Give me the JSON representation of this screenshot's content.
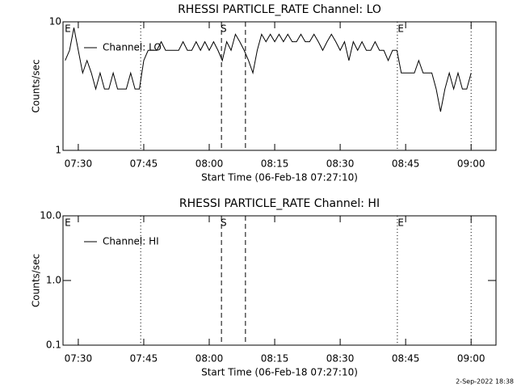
{
  "chart_data": [
    {
      "type": "line",
      "title": "RHESSI PARTICLE_RATE Channel: LO",
      "ylabel": "Counts/sec",
      "xlabel": "Start Time (06-Feb-18 07:27:10)",
      "log_y": true,
      "legend": "upper left",
      "xlim": [
        446.5,
        545.7
      ],
      "xticks": [
        {
          "value": 450,
          "label": "07:30"
        },
        {
          "value": 465,
          "label": "07:45"
        },
        {
          "value": 480,
          "label": "08:00"
        },
        {
          "value": 495,
          "label": "08:15"
        },
        {
          "value": 510,
          "label": "08:30"
        },
        {
          "value": 525,
          "label": "08:45"
        },
        {
          "value": 540,
          "label": "09:00"
        }
      ],
      "ylim": [
        1,
        10
      ],
      "yticks": [
        1,
        10
      ],
      "x": [
        447,
        448,
        449,
        450,
        451,
        452,
        453,
        454,
        455,
        456,
        457,
        458,
        459,
        460,
        461,
        462,
        463,
        464,
        465,
        466,
        467,
        468,
        469,
        470,
        471,
        472,
        473,
        474,
        475,
        476,
        477,
        478,
        479,
        480,
        481,
        482,
        483,
        484,
        485,
        486,
        487,
        488,
        489,
        490,
        491,
        492,
        493,
        494,
        495,
        496,
        497,
        498,
        499,
        500,
        501,
        502,
        503,
        504,
        505,
        506,
        507,
        508,
        509,
        510,
        511,
        512,
        513,
        514,
        515,
        516,
        517,
        518,
        519,
        520,
        521,
        522,
        523,
        524,
        525,
        526,
        527,
        528,
        529,
        530,
        531,
        532,
        533,
        534,
        535,
        536,
        537,
        538,
        539,
        540
      ],
      "series": [
        {
          "name": "Channel: LO",
          "color": "#000000",
          "values": [
            5,
            6,
            9,
            6,
            4,
            5,
            4,
            3,
            4,
            3,
            3,
            4,
            3,
            3,
            3,
            4,
            3,
            3,
            5,
            6,
            6,
            6,
            7,
            6,
            6,
            6,
            6,
            7,
            6,
            6,
            7,
            6,
            7,
            6,
            7,
            6,
            5,
            7,
            6,
            8,
            7,
            6,
            5,
            4,
            6,
            8,
            7,
            8,
            7,
            8,
            7,
            8,
            7,
            7,
            8,
            7,
            7,
            8,
            7,
            6,
            7,
            8,
            7,
            6,
            7,
            5,
            7,
            6,
            7,
            6,
            6,
            7,
            6,
            6,
            5,
            6,
            6,
            4,
            4,
            4,
            4,
            5,
            4,
            4,
            4,
            3,
            2,
            3,
            4,
            3,
            4,
            3,
            3,
            4
          ]
        }
      ],
      "annotations": [
        {
          "text": "E",
          "x": 447.6
        },
        {
          "text": "S",
          "x": 483.3
        },
        {
          "text": "E",
          "x": 523.9
        }
      ],
      "event_lines": [
        {
          "x": 464.3,
          "style": "dotted"
        },
        {
          "x": 482.8,
          "style": "dashed"
        },
        {
          "x": 488.3,
          "style": "dashed"
        },
        {
          "x": 523.1,
          "style": "dotted"
        },
        {
          "x": 540,
          "style": "dotted"
        }
      ]
    },
    {
      "type": "line",
      "title": "RHESSI PARTICLE_RATE Channel: HI",
      "ylabel": "Counts/sec",
      "xlabel": "Start Time (06-Feb-18 07:27:10)",
      "log_y": true,
      "legend": "upper left",
      "xlim": [
        446.5,
        545.7
      ],
      "xticks": [
        {
          "value": 450,
          "label": "07:30"
        },
        {
          "value": 465,
          "label": "07:45"
        },
        {
          "value": 480,
          "label": "08:00"
        },
        {
          "value": 495,
          "label": "08:15"
        },
        {
          "value": 510,
          "label": "08:30"
        },
        {
          "value": 525,
          "label": "08:45"
        },
        {
          "value": 540,
          "label": "09:00"
        }
      ],
      "ylim": [
        0.1,
        10
      ],
      "yticks": [
        0.1,
        {
          "value": 1,
          "label": "1.0"
        },
        {
          "value": 10,
          "label": "10.0"
        }
      ],
      "series": [
        {
          "name": "Channel: HI",
          "color": "#000000"
        }
      ],
      "annotations": [
        {
          "text": "E",
          "x": 447.6
        },
        {
          "text": "S",
          "x": 483.3
        },
        {
          "text": "E",
          "x": 523.9
        }
      ],
      "event_lines": [
        {
          "x": 464.3,
          "style": "dotted"
        },
        {
          "x": 482.8,
          "style": "dashed"
        },
        {
          "x": 488.3,
          "style": "dashed"
        },
        {
          "x": 523.1,
          "style": "dotted"
        },
        {
          "x": 540,
          "style": "dotted"
        }
      ]
    }
  ],
  "footer": "2-Sep-2022 18:38"
}
